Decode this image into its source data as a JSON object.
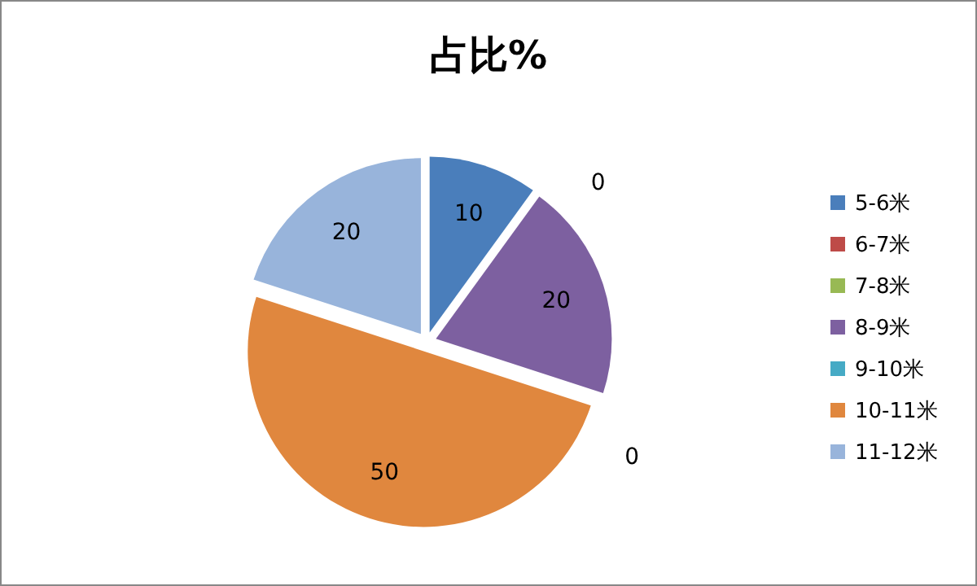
{
  "chart_data": {
    "type": "pie",
    "title": "占比%",
    "categories": [
      "5-6米",
      "6-7米",
      "7-8米",
      "8-9米",
      "9-10米",
      "10-11米",
      "11-12米"
    ],
    "values": [
      10,
      0,
      0,
      20,
      0,
      50,
      20
    ],
    "colors": [
      "#4a7ebb",
      "#be4b48",
      "#98b954",
      "#7d60a0",
      "#46aac5",
      "#e0873e",
      "#98b4db"
    ],
    "value_labels": [
      "10",
      "0",
      null,
      "20",
      "0",
      "50",
      "20"
    ],
    "legend": "right"
  }
}
